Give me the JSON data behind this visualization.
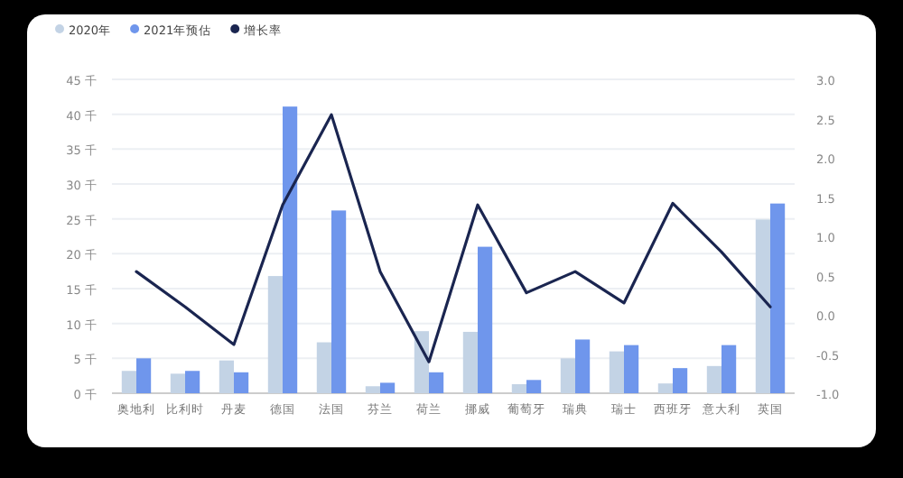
{
  "chart_data": {
    "type": "bar",
    "categories": [
      "奥地利",
      "比利时",
      "丹麦",
      "德国",
      "法国",
      "芬兰",
      "荷兰",
      "挪威",
      "葡萄牙",
      "瑞典",
      "瑞士",
      "西班牙",
      "意大利",
      "英国"
    ],
    "series": [
      {
        "name": "2020年",
        "color": "#c3d3e5",
        "values": [
          3.2,
          2.8,
          4.7,
          16.8,
          7.3,
          1.0,
          8.9,
          8.8,
          1.3,
          5.0,
          6.0,
          1.4,
          3.9,
          24.9
        ]
      },
      {
        "name": "2021年预估",
        "color": "#6f96ec",
        "values": [
          5.0,
          3.2,
          3.0,
          41.1,
          26.2,
          1.5,
          3.0,
          21.0,
          1.9,
          7.7,
          6.9,
          3.6,
          6.9,
          27.2
        ]
      },
      {
        "name": "增长率",
        "type": "line",
        "axis": "y2",
        "color": "#1a2550",
        "values": [
          0.55,
          0.1,
          -0.38,
          1.4,
          2.55,
          0.55,
          -0.6,
          1.4,
          0.28,
          0.55,
          0.15,
          1.42,
          0.8,
          0.1
        ]
      }
    ],
    "ylim": [
      0,
      45
    ],
    "yticks": [
      {
        "value": 0,
        "label": "0 千"
      },
      {
        "value": 5,
        "label": "5 千"
      },
      {
        "value": 10,
        "label": "10 千"
      },
      {
        "value": 15,
        "label": "15 千"
      },
      {
        "value": 20,
        "label": "20 千"
      },
      {
        "value": 25,
        "label": "25 千"
      },
      {
        "value": 30,
        "label": "30 千"
      },
      {
        "value": 35,
        "label": "35 千"
      },
      {
        "value": 40,
        "label": "40 千"
      },
      {
        "value": 45,
        "label": "45 千"
      }
    ],
    "y2lim": [
      -1,
      3
    ],
    "y2ticks": [
      {
        "value": -1,
        "label": "-1.0"
      },
      {
        "value": -0.5,
        "label": "-0.5"
      },
      {
        "value": 0,
        "label": "0.0"
      },
      {
        "value": 0.5,
        "label": "0.5"
      },
      {
        "value": 1,
        "label": "1.0"
      },
      {
        "value": 1.5,
        "label": "1.5"
      },
      {
        "value": 2,
        "label": "2.0"
      },
      {
        "value": 2.5,
        "label": "2.5"
      },
      {
        "value": 3,
        "label": "3.0"
      }
    ],
    "grid": "y",
    "legend": "top left"
  }
}
